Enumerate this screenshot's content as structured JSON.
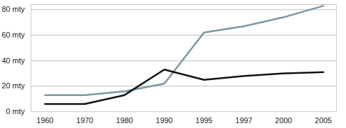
{
  "chart_data": {
    "type": "line",
    "categories": [
      "1960",
      "1970",
      "1980",
      "1990",
      "1995",
      "1997",
      "2000",
      "2005"
    ],
    "series": [
      {
        "color": "#7896a3",
        "values": [
          13,
          13,
          16,
          22,
          62,
          67,
          74,
          83
        ]
      },
      {
        "color": "#111111",
        "values": [
          6,
          6,
          13,
          33,
          25,
          28,
          30,
          31
        ]
      }
    ],
    "ylim": [
      0,
      84
    ],
    "yticks": [
      {
        "value": 0,
        "label": "0 mty"
      },
      {
        "value": 20,
        "label": "20 mty"
      },
      {
        "value": 40,
        "label": "40 mty"
      },
      {
        "value": 60,
        "label": "60 mty"
      },
      {
        "value": 80,
        "label": "80 mty"
      }
    ],
    "grid": true
  }
}
